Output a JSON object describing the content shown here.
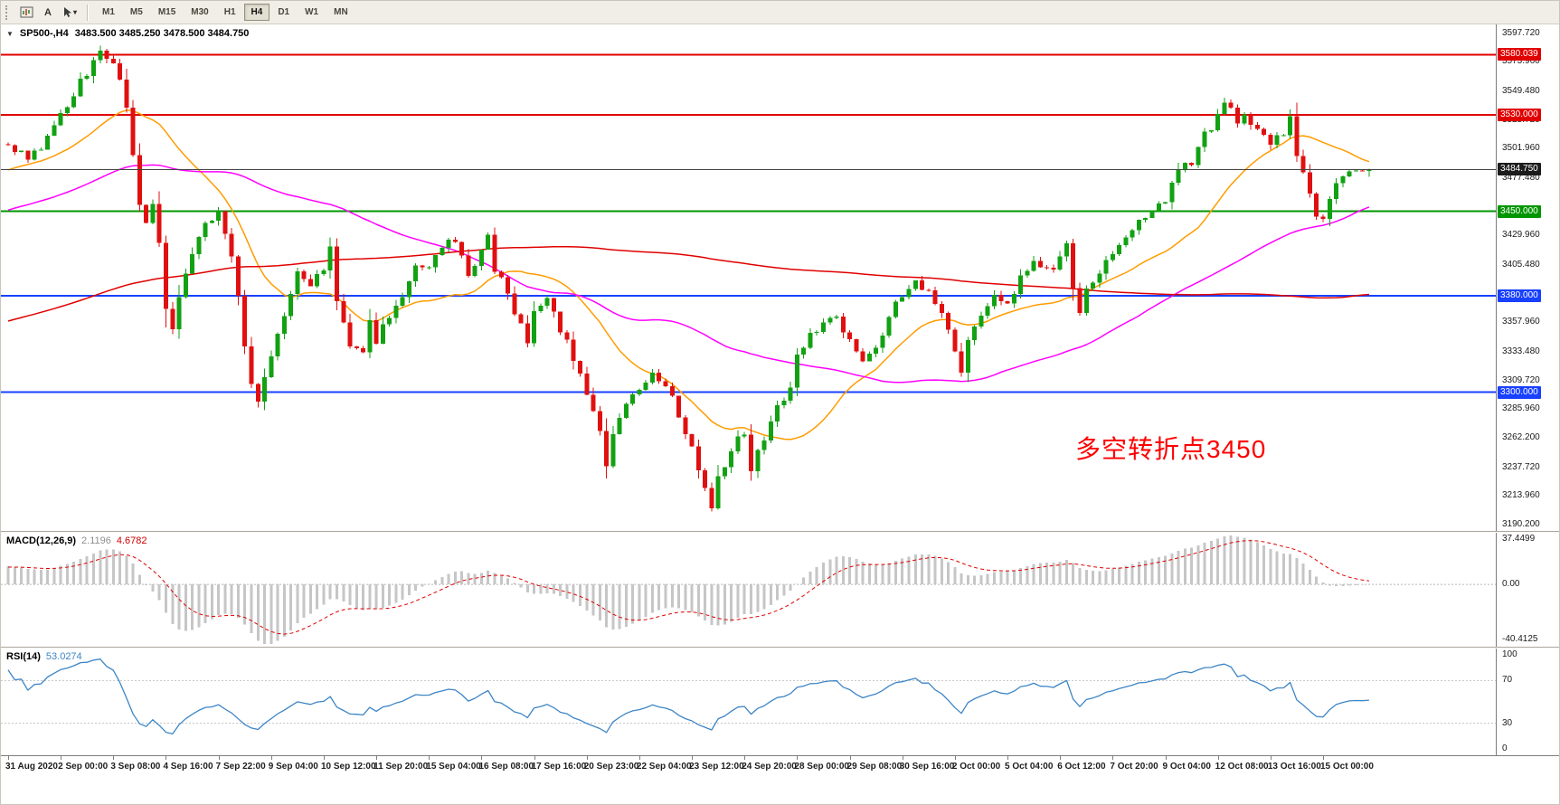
{
  "icons": {
    "collapse_arrow": "▼",
    "dropdown_arrow": "▾"
  },
  "toolbar": {
    "tools": [
      {
        "name": "chart-window-tool"
      },
      {
        "name": "font-tool",
        "label": "A"
      },
      {
        "name": "cursor-tool"
      }
    ],
    "timeframes": [
      {
        "label": "M1",
        "active": false
      },
      {
        "label": "M5",
        "active": false
      },
      {
        "label": "M15",
        "active": false
      },
      {
        "label": "M30",
        "active": false
      },
      {
        "label": "H1",
        "active": false
      },
      {
        "label": "H4",
        "active": true
      },
      {
        "label": "D1",
        "active": false
      },
      {
        "label": "W1",
        "active": false
      },
      {
        "label": "MN",
        "active": false
      }
    ]
  },
  "main_chart": {
    "symbol_title": "SP500-,H4",
    "ohlc_text": "3483.500 3485.250 3478.500 3484.750",
    "ohlc": {
      "open": 3483.5,
      "high": 3485.25,
      "low": 3478.5,
      "close": 3484.75
    },
    "annotation": {
      "text": "多空转折点3450",
      "color": "#ff0000"
    },
    "price_scale": {
      "min": 3185,
      "max": 3605
    },
    "axis_ticks": [
      "3597.720",
      "3573.960",
      "3549.480",
      "3525.720",
      "3501.960",
      "3477.480",
      "3429.960",
      "3405.480",
      "3357.960",
      "3333.480",
      "3309.720",
      "3285.960",
      "3262.200",
      "3237.720",
      "3213.960",
      "3190.200"
    ],
    "hlines": [
      {
        "value": 3580.039,
        "label": "3580.039",
        "color": "#e00000"
      },
      {
        "value": 3530.0,
        "label": "3530.000",
        "color": "#e00000"
      },
      {
        "value": 3450.0,
        "label": "3450.000",
        "color": "#009600"
      },
      {
        "value": 3380.0,
        "label": "3380.000",
        "color": "#1840ff"
      },
      {
        "value": 3300.0,
        "label": "3300.000",
        "color": "#1840ff"
      }
    ],
    "current_price": {
      "value": 3484.75,
      "label": "3484.750",
      "line_color": "#444444",
      "badge_bg": "#1c1c1c"
    },
    "candle_colors": {
      "bull": "#12a112",
      "bear": "#e01010"
    },
    "moving_averages": [
      {
        "name": "fast",
        "period": 20,
        "color": "#ff9c00"
      },
      {
        "name": "mid",
        "period": 60,
        "color": "#ff00ff"
      },
      {
        "name": "slow",
        "period": 180,
        "color": "#e00000"
      }
    ]
  },
  "chart_data": {
    "type": "candlestick",
    "title": "SP500-,H4",
    "timeframe": "H4",
    "visible_bars": 208,
    "lead_bars": 220,
    "label_step_bars": 8,
    "seed": 1337,
    "noise_amp": 4.5,
    "y_range": [
      3185,
      3605
    ],
    "price_path_anchors": [
      [
        0,
        3505
      ],
      [
        3,
        3492
      ],
      [
        6,
        3512
      ],
      [
        8,
        3528
      ],
      [
        11,
        3556
      ],
      [
        14,
        3582
      ],
      [
        16,
        3573
      ],
      [
        18,
        3540
      ],
      [
        19,
        3500
      ],
      [
        20,
        3452
      ],
      [
        21,
        3436
      ],
      [
        22,
        3455
      ],
      [
        23,
        3420
      ],
      [
        24,
        3370
      ],
      [
        25,
        3348
      ],
      [
        26,
        3382
      ],
      [
        28,
        3418
      ],
      [
        30,
        3440
      ],
      [
        32,
        3446
      ],
      [
        33,
        3432
      ],
      [
        34,
        3410
      ],
      [
        35,
        3378
      ],
      [
        36,
        3340
      ],
      [
        37,
        3308
      ],
      [
        38,
        3296
      ],
      [
        39,
        3316
      ],
      [
        40,
        3334
      ],
      [
        42,
        3362
      ],
      [
        44,
        3402
      ],
      [
        46,
        3390
      ],
      [
        48,
        3404
      ],
      [
        49,
        3418
      ],
      [
        50,
        3374
      ],
      [
        52,
        3342
      ],
      [
        54,
        3332
      ],
      [
        55,
        3356
      ],
      [
        56,
        3342
      ],
      [
        58,
        3362
      ],
      [
        60,
        3382
      ],
      [
        62,
        3402
      ],
      [
        64,
        3406
      ],
      [
        66,
        3420
      ],
      [
        68,
        3427
      ],
      [
        70,
        3398
      ],
      [
        72,
        3418
      ],
      [
        73,
        3428
      ],
      [
        74,
        3402
      ],
      [
        76,
        3380
      ],
      [
        78,
        3356
      ],
      [
        79,
        3338
      ],
      [
        80,
        3368
      ],
      [
        82,
        3382
      ],
      [
        84,
        3352
      ],
      [
        86,
        3330
      ],
      [
        88,
        3302
      ],
      [
        90,
        3268
      ],
      [
        91,
        3240
      ],
      [
        92,
        3262
      ],
      [
        94,
        3288
      ],
      [
        96,
        3302
      ],
      [
        98,
        3316
      ],
      [
        100,
        3308
      ],
      [
        102,
        3280
      ],
      [
        104,
        3252
      ],
      [
        106,
        3222
      ],
      [
        107,
        3208
      ],
      [
        108,
        3232
      ],
      [
        110,
        3252
      ],
      [
        112,
        3266
      ],
      [
        113,
        3238
      ],
      [
        115,
        3258
      ],
      [
        117,
        3290
      ],
      [
        119,
        3300
      ],
      [
        120,
        3330
      ],
      [
        122,
        3352
      ],
      [
        124,
        3356
      ],
      [
        126,
        3362
      ],
      [
        128,
        3342
      ],
      [
        130,
        3326
      ],
      [
        132,
        3338
      ],
      [
        134,
        3362
      ],
      [
        136,
        3382
      ],
      [
        138,
        3392
      ],
      [
        140,
        3386
      ],
      [
        142,
        3368
      ],
      [
        143,
        3348
      ],
      [
        144,
        3330
      ],
      [
        145,
        3318
      ],
      [
        146,
        3344
      ],
      [
        148,
        3366
      ],
      [
        150,
        3382
      ],
      [
        152,
        3372
      ],
      [
        154,
        3396
      ],
      [
        156,
        3408
      ],
      [
        158,
        3400
      ],
      [
        160,
        3412
      ],
      [
        161,
        3422
      ],
      [
        162,
        3390
      ],
      [
        163,
        3362
      ],
      [
        164,
        3382
      ],
      [
        166,
        3402
      ],
      [
        168,
        3416
      ],
      [
        170,
        3426
      ],
      [
        172,
        3440
      ],
      [
        174,
        3452
      ],
      [
        176,
        3462
      ],
      [
        178,
        3482
      ],
      [
        180,
        3492
      ],
      [
        182,
        3512
      ],
      [
        184,
        3530
      ],
      [
        185,
        3541
      ],
      [
        186,
        3534
      ],
      [
        187,
        3520
      ],
      [
        188,
        3532
      ],
      [
        190,
        3516
      ],
      [
        192,
        3506
      ],
      [
        194,
        3512
      ],
      [
        195,
        3525
      ],
      [
        196,
        3500
      ],
      [
        197,
        3478
      ],
      [
        198,
        3464
      ],
      [
        199,
        3450
      ],
      [
        200,
        3444
      ],
      [
        201,
        3456
      ],
      [
        202,
        3470
      ],
      [
        204,
        3480
      ],
      [
        206,
        3483.5
      ],
      [
        207,
        3484.75
      ]
    ],
    "lead_anchors": [
      [
        -220,
        3210
      ],
      [
        -190,
        3248
      ],
      [
        -170,
        3235
      ],
      [
        -150,
        3270
      ],
      [
        -130,
        3300
      ],
      [
        -110,
        3328
      ],
      [
        -90,
        3352
      ],
      [
        -70,
        3385
      ],
      [
        -50,
        3420
      ],
      [
        -30,
        3448
      ],
      [
        -15,
        3472
      ],
      [
        -5,
        3492
      ]
    ]
  },
  "macd": {
    "title": "MACD(12,26,9)",
    "value_main": "2.1196",
    "value_signal": "4.6782",
    "axis_ticks": [
      "37.4499",
      "0.00",
      "-40.4125"
    ],
    "hist_color": "#c6c6c6",
    "signal_color": "#e00000"
  },
  "rsi": {
    "title": "RSI(14)",
    "value": "53.0274",
    "axis_ticks": [
      "100",
      "70",
      "30",
      "0"
    ],
    "levels": [
      70,
      30
    ],
    "scale": {
      "min": 0,
      "max": 100
    },
    "line_color": "#3d85c6"
  },
  "time_axis": {
    "labels": [
      "31 Aug 2020",
      "2 Sep 00:00",
      "3 Sep 08:00",
      "4 Sep 16:00",
      "7 Sep 22:00",
      "9 Sep 04:00",
      "10 Sep 12:00",
      "11 Sep 20:00",
      "15 Sep 04:00",
      "16 Sep 08:00",
      "17 Sep 16:00",
      "20 Sep 23:00",
      "22 Sep 04:00",
      "23 Sep 12:00",
      "24 Sep 20:00",
      "28 Sep 00:00",
      "29 Sep 08:00",
      "30 Sep 16:00",
      "2 Oct 00:00",
      "5 Oct 04:00",
      "6 Oct 12:00",
      "7 Oct 20:00",
      "9 Oct 04:00",
      "12 Oct 08:00",
      "13 Oct 16:00",
      "15 Oct 00:00"
    ]
  }
}
